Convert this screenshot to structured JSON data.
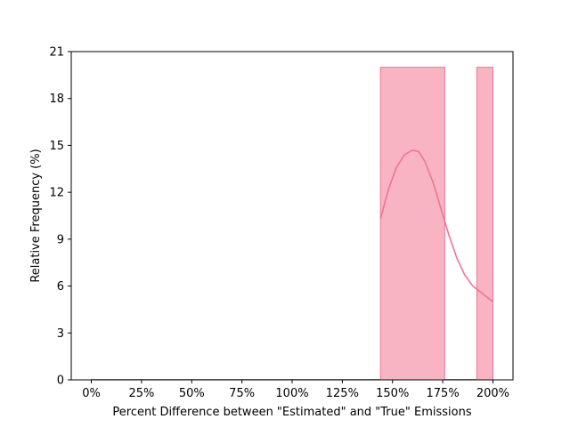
{
  "chart_data": {
    "type": "bar",
    "title": "",
    "xlabel": "Percent Difference between \"Estimated\" and \"True\" Emissions",
    "ylabel": "Relative Frequency (%)",
    "xlim": [
      -10,
      210
    ],
    "ylim": [
      0,
      21
    ],
    "x_ticks": [
      {
        "value": 0,
        "label": "0%"
      },
      {
        "value": 25,
        "label": "25%"
      },
      {
        "value": 50,
        "label": "50%"
      },
      {
        "value": 75,
        "label": "75%"
      },
      {
        "value": 100,
        "label": "100%"
      },
      {
        "value": 125,
        "label": "125%"
      },
      {
        "value": 150,
        "label": "150%"
      },
      {
        "value": 175,
        "label": "175%"
      },
      {
        "value": 200,
        "label": "200%"
      }
    ],
    "y_ticks": [
      {
        "value": 0,
        "label": "0"
      },
      {
        "value": 3,
        "label": "3"
      },
      {
        "value": 6,
        "label": "6"
      },
      {
        "value": 9,
        "label": "9"
      },
      {
        "value": 12,
        "label": "12"
      },
      {
        "value": 15,
        "label": "15"
      },
      {
        "value": 18,
        "label": "18"
      },
      {
        "value": 21,
        "label": "21"
      }
    ],
    "bins": [
      {
        "x0": 0,
        "x1": 144,
        "value": 0
      },
      {
        "x0": 144,
        "x1": 176,
        "value": 20
      },
      {
        "x0": 176,
        "x1": 192,
        "value": 0
      },
      {
        "x0": 192,
        "x1": 200,
        "value": 20
      }
    ],
    "kde": [
      {
        "x": 144,
        "y": 10.3
      },
      {
        "x": 148,
        "y": 12.2
      },
      {
        "x": 152,
        "y": 13.6
      },
      {
        "x": 156,
        "y": 14.4
      },
      {
        "x": 160,
        "y": 14.7
      },
      {
        "x": 163,
        "y": 14.6
      },
      {
        "x": 166,
        "y": 14.0
      },
      {
        "x": 170,
        "y": 12.7
      },
      {
        "x": 174,
        "y": 11.0
      },
      {
        "x": 178,
        "y": 9.3
      },
      {
        "x": 182,
        "y": 7.8
      },
      {
        "x": 186,
        "y": 6.7
      },
      {
        "x": 190,
        "y": 6.0
      },
      {
        "x": 194,
        "y": 5.6
      },
      {
        "x": 197,
        "y": 5.3
      },
      {
        "x": 200,
        "y": 5.0
      }
    ],
    "colors": {
      "bar_fill": "#f9b4c3",
      "bar_edge": "#f07490",
      "kde_line": "#f07490",
      "axis": "#000000"
    },
    "grid": false,
    "legend": "none"
  }
}
